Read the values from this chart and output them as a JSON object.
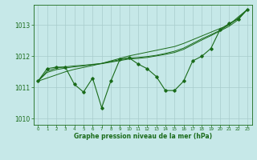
{
  "xlabel": "Graphe pression niveau de la mer (hPa)",
  "ylim": [
    1009.8,
    1013.65
  ],
  "xlim": [
    -0.5,
    23.5
  ],
  "yticks": [
    1010,
    1011,
    1012,
    1013
  ],
  "xticks": [
    0,
    1,
    2,
    3,
    4,
    5,
    6,
    7,
    8,
    9,
    10,
    11,
    12,
    13,
    14,
    15,
    16,
    17,
    18,
    19,
    20,
    21,
    22,
    23
  ],
  "bg_color": "#c6e8e8",
  "line_color": "#1a6b1a",
  "grid_color": "#a8cccc",
  "main_data": [
    1011.2,
    1011.6,
    1011.65,
    1011.65,
    1011.1,
    1010.85,
    1011.3,
    1010.35,
    1011.2,
    1011.9,
    1011.95,
    1011.75,
    1011.6,
    1011.35,
    1010.9,
    1010.9,
    1011.2,
    1011.85,
    1012.0,
    1012.25,
    1012.85,
    1013.05,
    1013.2,
    1013.5
  ],
  "smooth1": [
    1011.2,
    1011.48,
    1011.57,
    1011.62,
    1011.66,
    1011.69,
    1011.73,
    1011.76,
    1011.81,
    1011.86,
    1011.91,
    1011.93,
    1011.96,
    1012.01,
    1012.06,
    1012.12,
    1012.22,
    1012.37,
    1012.52,
    1012.66,
    1012.81,
    1012.96,
    1013.17,
    1013.5
  ],
  "smooth2": [
    1011.2,
    1011.52,
    1011.62,
    1011.66,
    1011.69,
    1011.71,
    1011.74,
    1011.77,
    1011.83,
    1011.89,
    1011.94,
    1011.96,
    1011.99,
    1012.03,
    1012.09,
    1012.16,
    1012.26,
    1012.41,
    1012.56,
    1012.69,
    1012.83,
    1013.01,
    1013.22,
    1013.5
  ],
  "trend1": [
    1011.2,
    1011.3,
    1011.4,
    1011.5,
    1011.58,
    1011.64,
    1011.7,
    1011.77,
    1011.85,
    1011.93,
    1012.01,
    1012.07,
    1012.13,
    1012.19,
    1012.25,
    1012.31,
    1012.41,
    1012.53,
    1012.65,
    1012.77,
    1012.89,
    1013.01,
    1013.26,
    1013.5
  ]
}
